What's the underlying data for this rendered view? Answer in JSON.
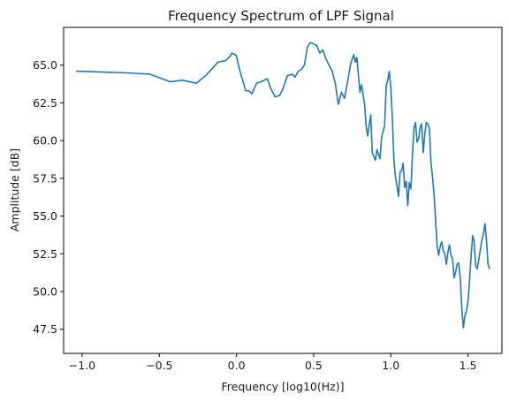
{
  "chart_data": {
    "type": "line",
    "title": "Frequency Spectrum of LPF Signal",
    "xlabel": "Frequency [log10(Hz)]",
    "ylabel": "Amplitude [dB]",
    "xlim": [
      -1.12,
      1.72
    ],
    "ylim": [
      45.9,
      67.5
    ],
    "xticks": [
      -1.0,
      -0.5,
      0.0,
      0.5,
      1.0,
      1.5
    ],
    "xtick_labels": [
      "−1.0",
      "−0.5",
      "0.0",
      "0.5",
      "1.0",
      "1.5"
    ],
    "yticks": [
      47.5,
      50.0,
      52.5,
      55.0,
      57.5,
      60.0,
      62.5,
      65.0
    ],
    "ytick_labels": [
      "47.5",
      "50.0",
      "52.5",
      "55.0",
      "57.5",
      "60.0",
      "62.5",
      "65.0"
    ],
    "grid": false,
    "line_color": "#1f77b4",
    "series": [
      {
        "x": [
          -1.04,
          -0.74,
          -0.56,
          -0.43,
          -0.35,
          -0.26,
          -0.2,
          -0.12,
          -0.07,
          -0.04,
          -0.03,
          -0.01,
          0.0,
          0.02,
          0.04,
          0.06,
          0.08,
          0.1,
          0.13,
          0.16,
          0.2,
          0.22,
          0.25,
          0.28,
          0.3,
          0.33,
          0.36,
          0.38,
          0.4,
          0.42,
          0.44,
          0.46,
          0.48,
          0.5,
          0.52,
          0.54,
          0.56,
          0.58,
          0.6,
          0.62,
          0.64,
          0.66,
          0.68,
          0.7,
          0.72,
          0.74,
          0.76,
          0.77,
          0.78,
          0.8,
          0.81,
          0.83,
          0.84,
          0.85,
          0.87,
          0.88,
          0.9,
          0.91,
          0.93,
          0.94,
          0.96,
          0.97,
          0.98,
          0.99,
          1.0,
          1.01,
          1.02,
          1.03,
          1.04,
          1.05,
          1.06,
          1.07,
          1.08,
          1.09,
          1.1,
          1.11,
          1.12,
          1.13,
          1.14,
          1.15,
          1.16,
          1.17,
          1.18,
          1.19,
          1.2,
          1.21,
          1.22,
          1.23,
          1.24,
          1.25,
          1.26,
          1.27,
          1.28,
          1.29,
          1.3,
          1.31,
          1.32,
          1.33,
          1.34,
          1.35,
          1.36,
          1.37,
          1.38,
          1.39,
          1.4,
          1.41,
          1.42,
          1.43,
          1.44,
          1.45,
          1.46,
          1.47,
          1.48,
          1.49,
          1.5,
          1.51,
          1.52,
          1.53,
          1.54,
          1.55,
          1.56,
          1.57,
          1.58,
          1.59,
          1.6,
          1.61,
          1.62,
          1.63,
          1.64
        ],
        "y": [
          64.6,
          64.5,
          64.4,
          63.9,
          64.0,
          63.8,
          64.3,
          65.2,
          65.3,
          65.6,
          65.8,
          65.7,
          65.6,
          64.7,
          64.0,
          63.3,
          63.3,
          63.1,
          63.8,
          63.9,
          64.1,
          63.5,
          62.9,
          63.0,
          63.4,
          64.3,
          64.4,
          64.2,
          64.6,
          64.7,
          65.0,
          66.2,
          66.5,
          66.4,
          66.3,
          65.8,
          66.0,
          65.4,
          65.0,
          64.6,
          63.8,
          62.4,
          63.2,
          62.8,
          63.9,
          65.1,
          65.7,
          65.2,
          65.5,
          63.2,
          63.7,
          62.4,
          61.0,
          60.3,
          61.7,
          59.2,
          58.7,
          59.4,
          58.8,
          60.2,
          61.0,
          63.6,
          64.0,
          64.6,
          63.5,
          61.5,
          58.7,
          57.6,
          57.0,
          56.3,
          57.9,
          58.0,
          58.5,
          56.9,
          57.3,
          55.7,
          57.2,
          56.8,
          59.0,
          60.8,
          61.2,
          59.9,
          60.1,
          60.9,
          61.1,
          59.2,
          60.4,
          61.2,
          61.1,
          60.8,
          58.6,
          57.6,
          56.5,
          54.8,
          53.0,
          52.4,
          53.0,
          53.3,
          52.7,
          52.5,
          51.8,
          52.6,
          53.1,
          52.4,
          52.2,
          50.9,
          51.3,
          51.8,
          51.9,
          50.9,
          48.9,
          47.6,
          48.4,
          48.7,
          49.3,
          50.7,
          52.3,
          53.7,
          53.3,
          51.7,
          51.5,
          52.1,
          52.8,
          53.4,
          53.8,
          54.5,
          53.4,
          51.8,
          51.5
        ]
      }
    ]
  }
}
